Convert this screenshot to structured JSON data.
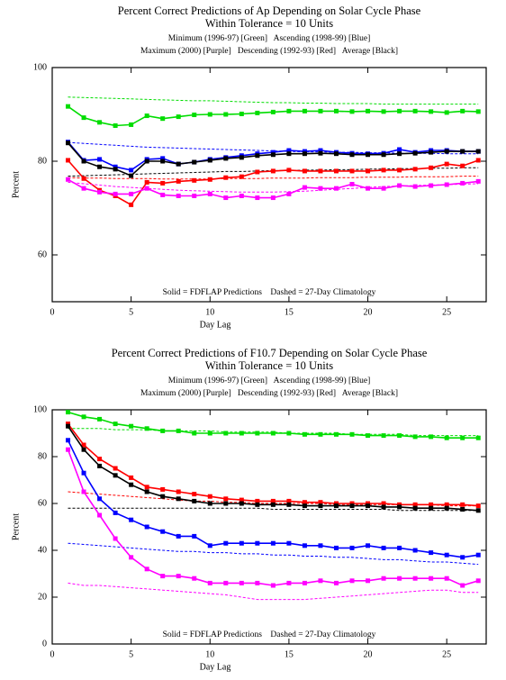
{
  "chart_data": [
    {
      "type": "line",
      "title": "Percent Correct Predictions of Ap Depending on Solar Cycle Phase",
      "subtitle": "Within Tolerance = 10 Units",
      "legend_lines": [
        "Minimum (1996-97) [Green]   Ascending (1998-99) [Blue]",
        "Maximum (2000) [Purple]   Descending (1992-93) [Red]   Average [Black]"
      ],
      "annotation": "Solid = FDFLAP Predictions    Dashed = 27-Day Climatology",
      "x_label": "Day Lag",
      "y_label": "Percent",
      "x": [
        1,
        2,
        3,
        4,
        5,
        6,
        7,
        8,
        9,
        10,
        11,
        12,
        13,
        14,
        15,
        16,
        17,
        18,
        19,
        20,
        21,
        22,
        23,
        24,
        25,
        26,
        27
      ],
      "xlim": [
        0,
        27.5
      ],
      "xticks": [
        0,
        5,
        10,
        15,
        20,
        25
      ],
      "ylim": [
        50,
        100
      ],
      "yticks": [
        60,
        80,
        100
      ],
      "series": [
        {
          "color": "#00dd00",
          "dashed": false,
          "values": [
            91.7,
            89.3,
            88.3,
            87.6,
            87.8,
            89.7,
            89.1,
            89.5,
            89.9,
            90,
            90,
            90.1,
            90.3,
            90.5,
            90.7,
            90.7,
            90.7,
            90.7,
            90.6,
            90.7,
            90.6,
            90.7,
            90.7,
            90.6,
            90.4,
            90.7,
            90.6
          ]
        },
        {
          "color": "#00dd00",
          "dashed": true,
          "values": [
            93.7,
            93.6,
            93.5,
            93.4,
            93.3,
            93.2,
            93.1,
            93,
            92.9,
            92.9,
            92.8,
            92.7,
            92.6,
            92.5,
            92.5,
            92.4,
            92.4,
            92.3,
            92.3,
            92.3,
            92.2,
            92.2,
            92.2,
            92.2,
            92.2,
            92.2,
            92.2
          ]
        },
        {
          "color": "#0000ff",
          "dashed": false,
          "values": [
            84.1,
            80.2,
            80.4,
            78.8,
            78.1,
            80.4,
            80.6,
            79.4,
            79.8,
            80.4,
            80.8,
            81.2,
            81.6,
            81.9,
            82.3,
            82.1,
            82.3,
            81.9,
            81.7,
            81.6,
            81.7,
            82.5,
            81.9,
            82.3,
            82.3,
            82.1,
            82.1
          ]
        },
        {
          "color": "#0000ff",
          "dashed": true,
          "values": [
            84,
            83.8,
            83.6,
            83.4,
            83.2,
            83,
            82.9,
            82.8,
            82.7,
            82.6,
            82.5,
            82.4,
            82.3,
            82.2,
            82.1,
            82,
            82,
            81.9,
            81.9,
            81.8,
            81.8,
            81.7,
            81.7,
            81.7,
            81.6,
            81.6,
            81.6
          ]
        },
        {
          "color": "#000000",
          "dashed": false,
          "values": [
            83.9,
            80,
            78.8,
            78.3,
            76.9,
            80,
            80,
            79.4,
            79.8,
            80.2,
            80.6,
            80.8,
            81.2,
            81.4,
            81.6,
            81.6,
            81.7,
            81.6,
            81.4,
            81.4,
            81.4,
            81.6,
            81.7,
            81.9,
            82.1,
            82.1,
            82.1
          ]
        },
        {
          "color": "#000000",
          "dashed": true,
          "values": [
            76.8,
            76.9,
            77,
            77.1,
            77.2,
            77.3,
            77.4,
            77.5,
            77.6,
            77.7,
            77.8,
            77.8,
            77.9,
            78,
            78,
            78.1,
            78.1,
            78.2,
            78.2,
            78.3,
            78.3,
            78.4,
            78.4,
            78.5,
            78.5,
            78.6,
            78.6
          ]
        },
        {
          "color": "#ff0000",
          "dashed": false,
          "values": [
            80.2,
            76.3,
            73.8,
            72.6,
            70.7,
            75.5,
            75.3,
            75.7,
            75.9,
            76.1,
            76.5,
            76.7,
            77.7,
            77.9,
            78.1,
            77.9,
            77.9,
            77.9,
            77.9,
            77.9,
            78.1,
            78.1,
            78.3,
            78.6,
            79.4,
            79,
            80.2
          ]
        },
        {
          "color": "#ff0000",
          "dashed": true,
          "values": [
            76.5,
            76.4,
            76.4,
            76.3,
            76.3,
            76.3,
            76.2,
            76.2,
            76.2,
            76.2,
            76.3,
            76.3,
            76.3,
            76.4,
            76.4,
            76.4,
            76.5,
            76.5,
            76.5,
            76.6,
            76.6,
            76.6,
            76.7,
            76.7,
            76.7,
            76.8,
            76.8
          ]
        },
        {
          "color": "#ff00ff",
          "dashed": false,
          "values": [
            76.1,
            74.2,
            73.4,
            73,
            73,
            74.2,
            72.8,
            72.6,
            72.6,
            73,
            72.2,
            72.6,
            72.2,
            72.2,
            73,
            74.4,
            74.2,
            74.2,
            75.1,
            74.2,
            74.2,
            74.8,
            74.6,
            74.8,
            75,
            75.3,
            75.7
          ]
        },
        {
          "color": "#ff00ff",
          "dashed": true,
          "values": [
            75.5,
            75.2,
            74.9,
            74.6,
            74.4,
            74.2,
            74,
            73.8,
            73.7,
            73.6,
            73.5,
            73.4,
            73.4,
            73.4,
            73.5,
            73.6,
            73.8,
            74,
            74.2,
            74.4,
            74.6,
            74.7,
            74.8,
            74.9,
            75,
            75.1,
            75.2
          ]
        }
      ]
    },
    {
      "type": "line",
      "title": "Percent Correct Predictions of F10.7 Depending on Solar Cycle Phase",
      "subtitle": "Within Tolerance = 10 Units",
      "legend_lines": [
        "Minimum (1996-97) [Green]   Ascending (1998-99) [Blue]",
        "Maximum (2000) [Purple]   Descending (1992-93) [Red]   Average [Black]"
      ],
      "annotation": "Solid = FDFLAP Predictions    Dashed = 27-Day Climatology",
      "x_label": "Day Lag",
      "y_label": "Percent",
      "x": [
        1,
        2,
        3,
        4,
        5,
        6,
        7,
        8,
        9,
        10,
        11,
        12,
        13,
        14,
        15,
        16,
        17,
        18,
        19,
        20,
        21,
        22,
        23,
        24,
        25,
        26,
        27
      ],
      "xlim": [
        0,
        27.5
      ],
      "xticks": [
        0,
        5,
        10,
        15,
        20,
        25
      ],
      "ylim": [
        0,
        100
      ],
      "yticks": [
        0,
        20,
        40,
        60,
        80,
        100
      ],
      "series": [
        {
          "color": "#00dd00",
          "dashed": false,
          "values": [
            99,
            97,
            96,
            94,
            93,
            92,
            91,
            91,
            90,
            90,
            90,
            90,
            90,
            90,
            90,
            89.5,
            89.5,
            89.5,
            89.5,
            89,
            89,
            89,
            88.5,
            88.5,
            88,
            88,
            88
          ]
        },
        {
          "color": "#00dd00",
          "dashed": true,
          "values": [
            92,
            92,
            92,
            91.5,
            91.5,
            91.5,
            91,
            91,
            91,
            91,
            90.5,
            90.5,
            90.5,
            90.5,
            90,
            90,
            90,
            90,
            89.5,
            89.5,
            89.5,
            89.5,
            89,
            89,
            89,
            89,
            89
          ]
        },
        {
          "color": "#ff0000",
          "dashed": false,
          "values": [
            94,
            85,
            79,
            75,
            71,
            67,
            66,
            65,
            64,
            63,
            62,
            61.5,
            61,
            61,
            61,
            60.5,
            60.5,
            60,
            60,
            60,
            60,
            59.5,
            59.5,
            59.5,
            59.5,
            59.5,
            59
          ]
        },
        {
          "color": "#ff0000",
          "dashed": true,
          "values": [
            65,
            64.5,
            64,
            63.5,
            63,
            62.5,
            62,
            61.5,
            61,
            61,
            60.5,
            60.5,
            60,
            60,
            60,
            60,
            60,
            59.5,
            59.5,
            59.5,
            59.5,
            59.5,
            59.5,
            59.5,
            59,
            59,
            59
          ]
        },
        {
          "color": "#000000",
          "dashed": false,
          "values": [
            93,
            83,
            76,
            72,
            68,
            65,
            63,
            62,
            61,
            60,
            60,
            60,
            59.5,
            59.5,
            59.5,
            59,
            59,
            59,
            59,
            59,
            58.5,
            58.5,
            58,
            58,
            58,
            57.5,
            57
          ]
        },
        {
          "color": "#000000",
          "dashed": true,
          "values": [
            58,
            58,
            58,
            58,
            58,
            58,
            58,
            58,
            58,
            58,
            58,
            58,
            58,
            57.5,
            57.5,
            57.5,
            57.5,
            57.5,
            57.5,
            57.5,
            57.5,
            57,
            57,
            57,
            57,
            57,
            57
          ]
        },
        {
          "color": "#0000ff",
          "dashed": false,
          "values": [
            87,
            73,
            62,
            56,
            53,
            50,
            48,
            46,
            46,
            42,
            43,
            43,
            43,
            43,
            43,
            42,
            42,
            41,
            41,
            42,
            41,
            41,
            40,
            39,
            38,
            37,
            38
          ]
        },
        {
          "color": "#0000ff",
          "dashed": true,
          "values": [
            43,
            42.5,
            42,
            41.5,
            41,
            40.5,
            40,
            39.5,
            39.5,
            39,
            39,
            38.5,
            38.5,
            38,
            38,
            37.5,
            37.5,
            37,
            37,
            36.5,
            36,
            36,
            35.5,
            35,
            35,
            34.5,
            34
          ]
        },
        {
          "color": "#ff00ff",
          "dashed": false,
          "values": [
            83,
            65,
            55,
            45,
            37,
            32,
            29,
            29,
            28,
            26,
            26,
            26,
            26,
            25,
            26,
            26,
            27,
            26,
            27,
            27,
            28,
            28,
            28,
            28,
            28,
            25,
            27
          ]
        },
        {
          "color": "#ff00ff",
          "dashed": true,
          "values": [
            26,
            25,
            25,
            24.5,
            24,
            23.5,
            23,
            22.5,
            22,
            21.5,
            21,
            20,
            19,
            19,
            19,
            19,
            19.5,
            20,
            20.5,
            21,
            21.5,
            22,
            22.5,
            23,
            23,
            22,
            22
          ]
        }
      ]
    }
  ]
}
